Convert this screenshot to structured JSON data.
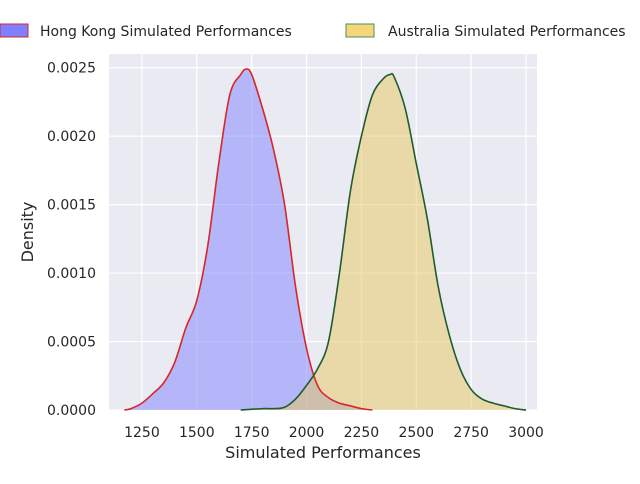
{
  "chart_data": {
    "type": "area",
    "xlabel": "Simulated Performances",
    "ylabel": "Density",
    "xlim": [
      1100,
      3050
    ],
    "ylim": [
      0,
      0.0026
    ],
    "x_ticks": [
      1250,
      1500,
      1750,
      2000,
      2250,
      2500,
      2750,
      3000
    ],
    "y_ticks": [
      0.0,
      0.0005,
      0.001,
      0.0015,
      0.002,
      0.0025
    ],
    "y_tick_labels": [
      "0.0000",
      "0.0005",
      "0.0010",
      "0.0015",
      "0.0020",
      "0.0025"
    ],
    "grid": true,
    "legend_position": "top",
    "series": [
      {
        "name": "Hong Kong Simulated Performances",
        "fill_color": "#8080ff",
        "line_color": "#d62728",
        "points": [
          [
            1170,
            0.0
          ],
          [
            1200,
            1e-05
          ],
          [
            1250,
            5e-05
          ],
          [
            1300,
            0.00012
          ],
          [
            1350,
            0.0002
          ],
          [
            1400,
            0.00035
          ],
          [
            1450,
            0.0006
          ],
          [
            1500,
            0.0008
          ],
          [
            1550,
            0.0012
          ],
          [
            1600,
            0.0018
          ],
          [
            1650,
            0.0023
          ],
          [
            1700,
            0.00245
          ],
          [
            1725,
            0.00249
          ],
          [
            1750,
            0.00245
          ],
          [
            1800,
            0.0022
          ],
          [
            1850,
            0.0019
          ],
          [
            1900,
            0.0015
          ],
          [
            1950,
            0.0009
          ],
          [
            2000,
            0.00045
          ],
          [
            2050,
            0.00018
          ],
          [
            2100,
            9e-05
          ],
          [
            2150,
            5e-05
          ],
          [
            2200,
            3e-05
          ],
          [
            2250,
            1e-05
          ],
          [
            2300,
            0.0
          ]
        ]
      },
      {
        "name": "Australia Simulated Performances",
        "fill_color": "#e8c860",
        "line_color": "#1f5c2e",
        "points": [
          [
            1700,
            0.0
          ],
          [
            1800,
            1e-05
          ],
          [
            1850,
            1e-05
          ],
          [
            1900,
            2e-05
          ],
          [
            1950,
            8e-05
          ],
          [
            2000,
            0.00018
          ],
          [
            2050,
            0.0003
          ],
          [
            2100,
            0.0005
          ],
          [
            2150,
            0.001
          ],
          [
            2200,
            0.0016
          ],
          [
            2250,
            0.002
          ],
          [
            2300,
            0.0023
          ],
          [
            2350,
            0.00242
          ],
          [
            2380,
            0.00245
          ],
          [
            2400,
            0.00243
          ],
          [
            2450,
            0.0022
          ],
          [
            2500,
            0.0018
          ],
          [
            2550,
            0.0014
          ],
          [
            2600,
            0.0009
          ],
          [
            2650,
            0.00055
          ],
          [
            2700,
            0.0003
          ],
          [
            2750,
            0.00015
          ],
          [
            2800,
            8e-05
          ],
          [
            2850,
            5e-05
          ],
          [
            2900,
            3e-05
          ],
          [
            2950,
            1e-05
          ],
          [
            3000,
            0.0
          ]
        ]
      }
    ]
  }
}
